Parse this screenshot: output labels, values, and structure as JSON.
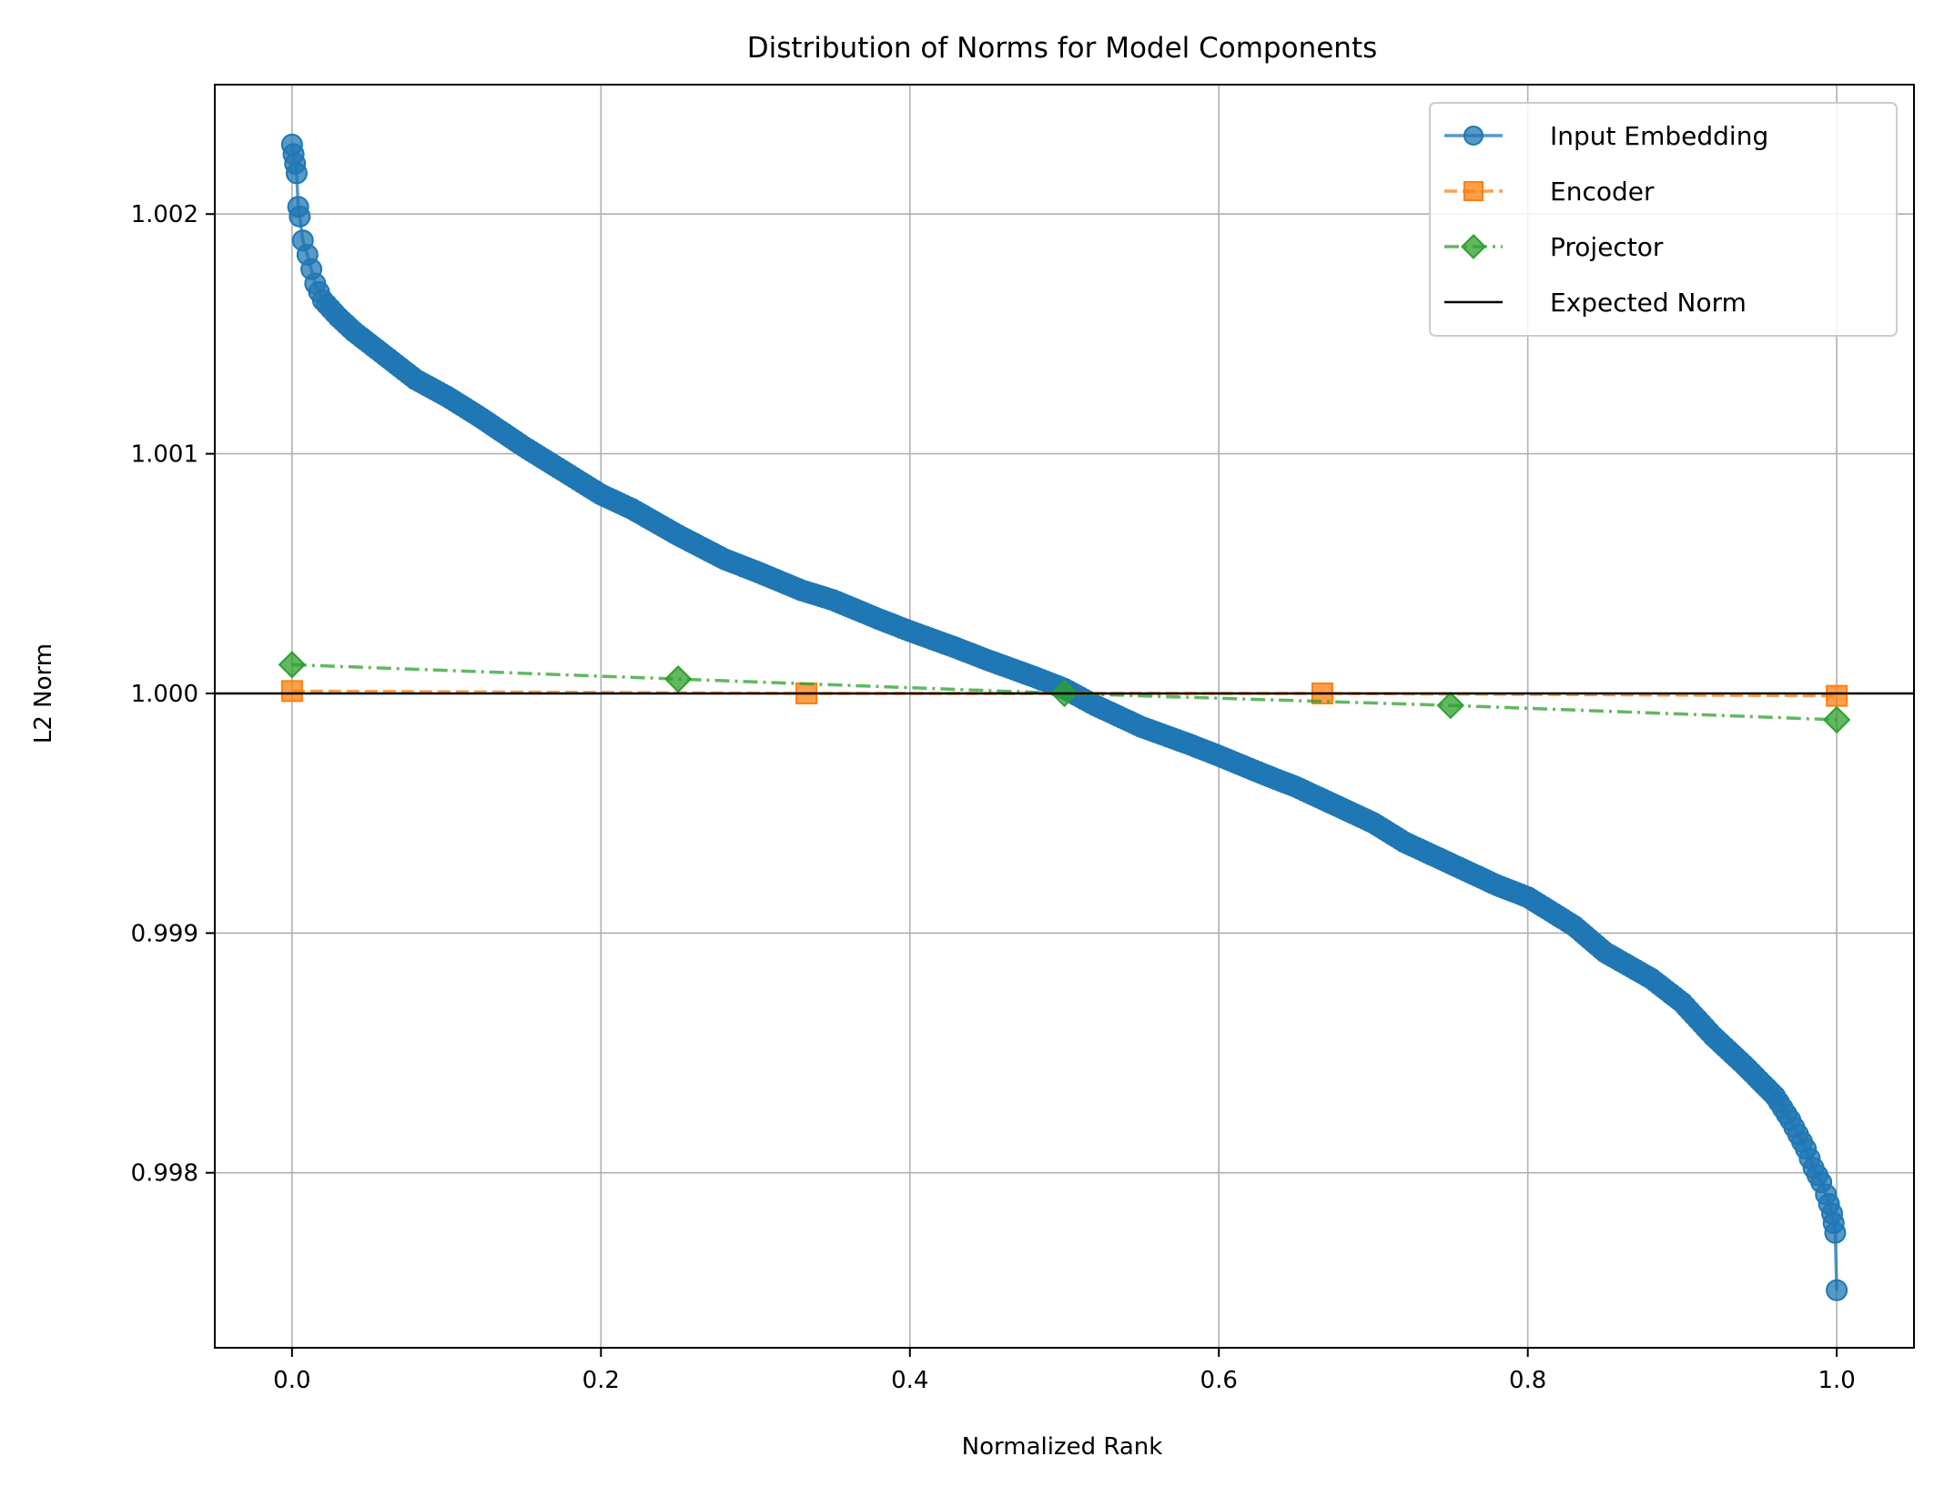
{
  "chart_data": {
    "type": "line",
    "title": "Distribution of Norms for Model Components",
    "xlabel": "Normalized Rank",
    "ylabel": "L2 Norm",
    "xlim": [
      -0.05,
      1.05
    ],
    "ylim": [
      0.99727,
      1.00254
    ],
    "xticks": [
      0.0,
      0.2,
      0.4,
      0.6,
      0.8,
      1.0
    ],
    "xtick_labels": [
      "0.0",
      "0.2",
      "0.4",
      "0.6",
      "0.8",
      "1.0"
    ],
    "yticks": [
      0.998,
      0.999,
      1.0,
      1.001,
      1.002
    ],
    "ytick_labels": [
      "0.998",
      "0.999",
      "1.000",
      "1.001",
      "1.002"
    ],
    "grid": true,
    "legend_position": "top-right",
    "series": [
      {
        "name": "Input Embedding",
        "color": "#1f77b4",
        "linestyle": "solid",
        "marker": "circle",
        "x": [
          0.0,
          0.001,
          0.002,
          0.003,
          0.004,
          0.005,
          0.007,
          0.01,
          0.015,
          0.02,
          0.03,
          0.04,
          0.05,
          0.06,
          0.08,
          0.1,
          0.12,
          0.15,
          0.18,
          0.2,
          0.22,
          0.25,
          0.28,
          0.3,
          0.33,
          0.35,
          0.38,
          0.4,
          0.43,
          0.45,
          0.48,
          0.5,
          0.52,
          0.55,
          0.58,
          0.6,
          0.63,
          0.65,
          0.68,
          0.7,
          0.72,
          0.75,
          0.78,
          0.8,
          0.83,
          0.85,
          0.88,
          0.9,
          0.92,
          0.94,
          0.96,
          0.97,
          0.98,
          0.985,
          0.99,
          0.993,
          0.995,
          0.997,
          0.998,
          0.999,
          1.0
        ],
        "y": [
          1.00229,
          1.00225,
          1.00221,
          1.00217,
          1.00203,
          1.00199,
          1.00189,
          1.00183,
          1.00171,
          1.00164,
          1.00157,
          1.00151,
          1.00146,
          1.00141,
          1.00131,
          1.00124,
          1.00116,
          1.00103,
          1.00091,
          1.00083,
          1.00077,
          1.00066,
          1.00056,
          1.00051,
          1.00043,
          1.00039,
          1.00031,
          1.00026,
          1.00019,
          1.00014,
          1.00007,
          1.00002,
          0.99995,
          0.99986,
          0.99979,
          0.99974,
          0.99966,
          0.99961,
          0.99952,
          0.99946,
          0.99938,
          0.99929,
          0.9992,
          0.99915,
          0.99903,
          0.99892,
          0.99881,
          0.99871,
          0.99857,
          0.99845,
          0.99832,
          0.99822,
          0.9981,
          0.99802,
          0.99796,
          0.99791,
          0.99787,
          0.99783,
          0.99779,
          0.99775,
          0.99751
        ]
      },
      {
        "name": "Encoder",
        "color": "#ff7f0e",
        "linestyle": "dashed",
        "marker": "square",
        "x": [
          0.0,
          0.333,
          0.667,
          1.0
        ],
        "y": [
          1.00001,
          1.0,
          1.0,
          0.99999
        ]
      },
      {
        "name": "Projector",
        "color": "#2ca02c",
        "linestyle": "dashdot",
        "marker": "diamond",
        "x": [
          0.0,
          0.25,
          0.5,
          0.75,
          1.0
        ],
        "y": [
          1.00012,
          1.00006,
          1.0,
          0.99995,
          0.99989
        ]
      }
    ],
    "reference_line": {
      "name": "Expected Norm",
      "y": 1.0,
      "color": "#000000"
    }
  }
}
